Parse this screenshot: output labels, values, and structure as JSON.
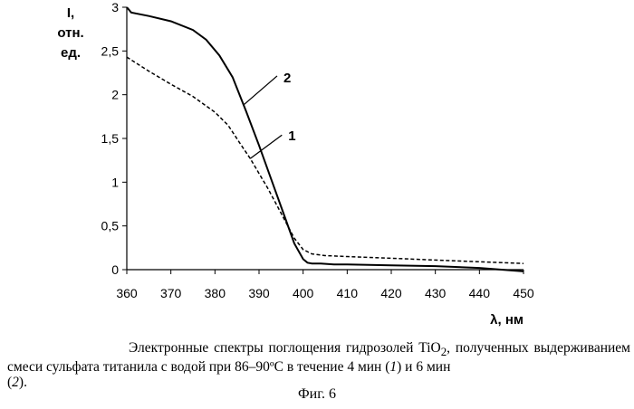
{
  "chart_data": {
    "type": "line",
    "title": "",
    "ylabel": [
      "I,",
      "отн.",
      "ед."
    ],
    "xlabel": "λ, нм",
    "xlim": [
      360,
      450
    ],
    "ylim": [
      0,
      3
    ],
    "xticks": [
      "360",
      "370",
      "380",
      "390",
      "400",
      "410",
      "420",
      "430",
      "440",
      "450"
    ],
    "yticks": [
      "0",
      "0,5",
      "1",
      "1,5",
      "2",
      "2,5",
      "3"
    ],
    "grid": false,
    "series": [
      {
        "name": "1",
        "style": "dashed",
        "x": [
          360,
          365,
          370,
          375,
          380,
          383,
          386,
          388,
          390,
          392,
          394,
          396,
          398,
          400,
          402,
          405,
          410,
          420,
          430,
          440,
          450
        ],
        "y": [
          2.43,
          2.27,
          2.12,
          1.98,
          1.8,
          1.65,
          1.42,
          1.27,
          1.1,
          0.93,
          0.74,
          0.55,
          0.36,
          0.23,
          0.18,
          0.16,
          0.15,
          0.13,
          0.11,
          0.09,
          0.07
        ]
      },
      {
        "name": "2",
        "style": "solid",
        "x": [
          360,
          361,
          365,
          370,
          375,
          378,
          381,
          384,
          387,
          390,
          393,
          396,
          398,
          400,
          401,
          402,
          404,
          407,
          410,
          420,
          430,
          440,
          450
        ],
        "y": [
          3.0,
          2.94,
          2.9,
          2.84,
          2.74,
          2.63,
          2.45,
          2.2,
          1.82,
          1.42,
          1.0,
          0.58,
          0.3,
          0.12,
          0.08,
          0.07,
          0.07,
          0.06,
          0.06,
          0.05,
          0.04,
          0.02,
          -0.02
        ]
      }
    ],
    "annotations": [
      {
        "text": "2",
        "points_to_series": "2",
        "at_x": 386.5
      },
      {
        "text": "1",
        "points_to_series": "1",
        "at_x": 388
      }
    ]
  },
  "caption": {
    "line1": "Электронные спектры поглощения гидрозолей TiO",
    "line1_sub": "2",
    "line1_end": ", полученных",
    "line2": "выдерживанием смеси сульфата титанила с водой при 86–90ºC в течение 4 мин (",
    "n1": "1",
    "mid": ") и 6 мин",
    "line3_open": "(",
    "n2": "2",
    "line3_close": ")."
  },
  "figure_label": "Фиг.   6"
}
